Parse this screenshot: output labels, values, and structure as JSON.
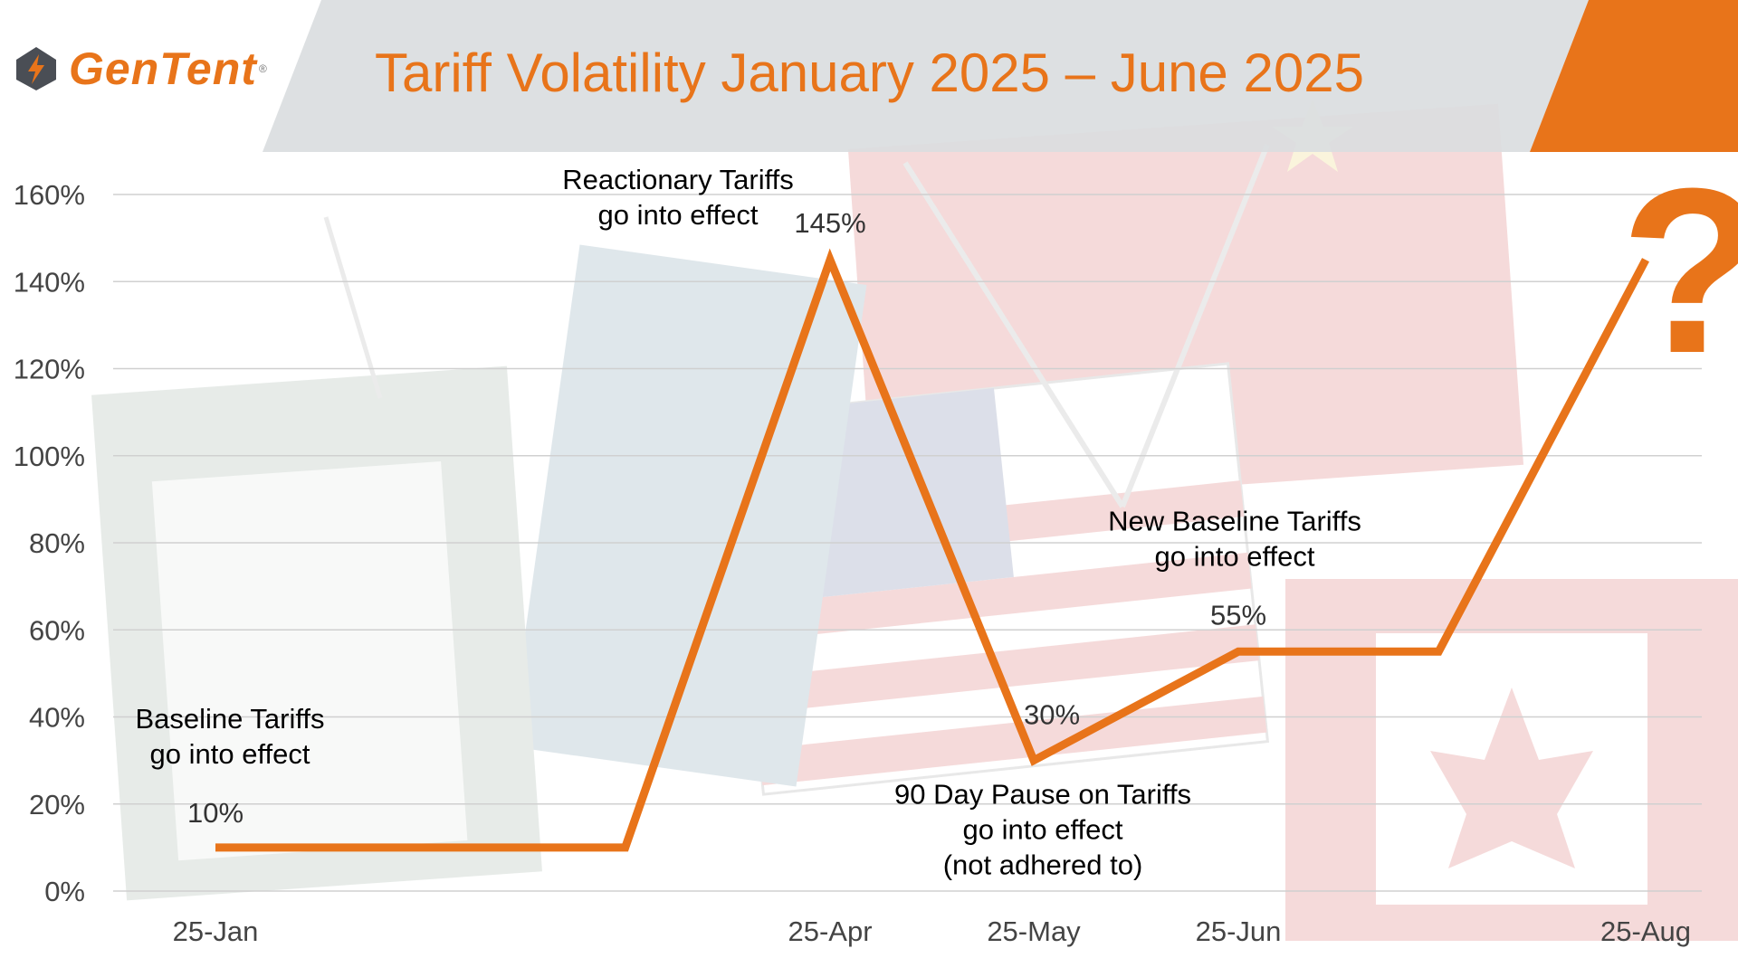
{
  "header": {
    "logo_text": "GenTent",
    "logo_mark": "®",
    "title": "Tariff Volatility January 2025 – June 2025"
  },
  "colors": {
    "accent": "#E8741A",
    "header_band": "#DADDE0",
    "grid": "#D0D0D0",
    "text": "#000000",
    "axis_text": "#444444"
  },
  "icons": {
    "logo": "gentent-logo-icon",
    "question": "question-mark-icon"
  },
  "question_glyph": "?",
  "chart_data": {
    "type": "line",
    "title": "Tariff Volatility January 2025 – June 2025",
    "xlabel": "",
    "ylabel": "",
    "x_ticks": [
      "25-Jan",
      "25-Apr",
      "25-May",
      "25-Jun",
      "25-Aug"
    ],
    "x_tick_dates": [
      "2025-01-25",
      "2025-04-25",
      "2025-05-25",
      "2025-06-25",
      "2025-08-25"
    ],
    "ylim": [
      0,
      160
    ],
    "y_ticks": [
      0,
      20,
      40,
      60,
      80,
      100,
      120,
      140,
      160
    ],
    "y_tick_labels": [
      "0%",
      "20%",
      "40%",
      "60%",
      "80%",
      "100%",
      "120%",
      "140%",
      "160%"
    ],
    "grid": true,
    "legend": "none",
    "series": [
      {
        "points": [
          {
            "x": "2025-01-25",
            "y": 10
          },
          {
            "x": "2025-03-26",
            "y": 10
          },
          {
            "x": "2025-04-25",
            "y": 145
          },
          {
            "x": "2025-05-25",
            "y": 30
          },
          {
            "x": "2025-06-25",
            "y": 55
          },
          {
            "x": "2025-07-25",
            "y": 55
          },
          {
            "x": "2025-08-25",
            "y": 145
          }
        ]
      }
    ],
    "value_labels": [
      {
        "x": "2025-01-25",
        "y": 10,
        "text": "10%"
      },
      {
        "x": "2025-04-25",
        "y": 145,
        "text": "145%"
      },
      {
        "x": "2025-05-25",
        "y": 30,
        "text": "30%"
      },
      {
        "x": "2025-06-25",
        "y": 55,
        "text": "55%"
      }
    ],
    "annotations": [
      {
        "x": "2025-01-25",
        "y": 10,
        "lines": [
          "Baseline Tariffs",
          "go into effect"
        ]
      },
      {
        "x": "2025-04-25",
        "y": 145,
        "lines": [
          "Reactionary Tariffs",
          "go into effect"
        ]
      },
      {
        "x": "2025-05-25",
        "y": 30,
        "lines": [
          "90 Day Pause on Tariffs",
          "go into effect",
          "(not adhered to)"
        ]
      },
      {
        "x": "2025-06-25",
        "y": 55,
        "lines": [
          "New Baseline Tariffs",
          "go into effect"
        ]
      }
    ]
  }
}
